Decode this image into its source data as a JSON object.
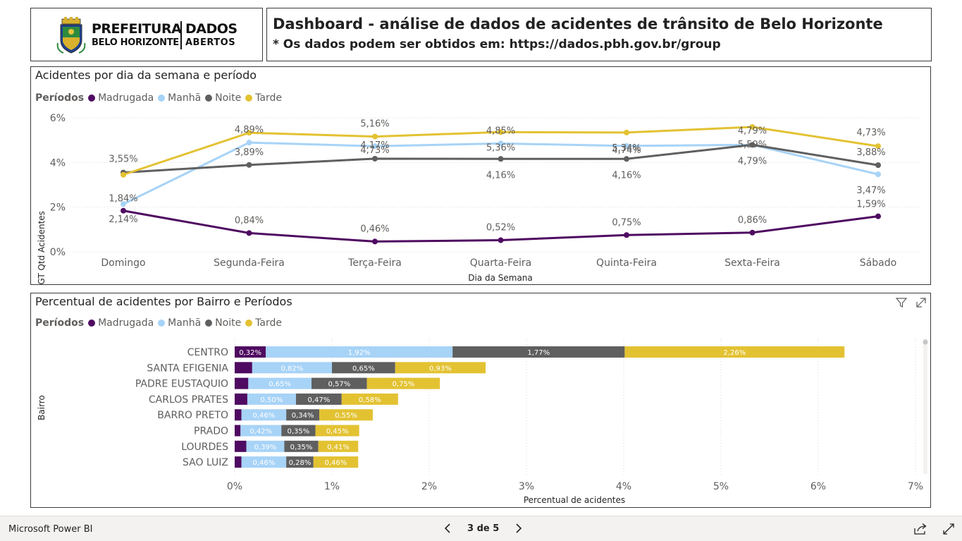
{
  "header": {
    "logo": {
      "line1": "PREFEITURA",
      "line2": "BELO HORIZONTE",
      "line3": "DADOS",
      "line4": "ABERTOS",
      "icon": "coat-of-arms-icon"
    },
    "title": "Dashboard - análise de dados de acidentes de trânsito de Belo Horizonte",
    "subtitle": "* Os dados podem ser obtidos em: https://dados.pbh.gov.br/group"
  },
  "colors": {
    "madrugada": "#4f0a61",
    "manha": "#a7d3f7",
    "noite": "#5f5f5f",
    "tarde": "#e3c232"
  },
  "line_chart": {
    "title": "Acidentes por dia da semana e período",
    "legend_title": "Períodos",
    "legend": [
      "Madrugada",
      "Manhã",
      "Noite",
      "Tarde"
    ],
    "ylabel": "%GT Qtd Acidentes",
    "xlabel": "Dia da Semana",
    "yticks": [
      "6%",
      "4%",
      "2%",
      "0%"
    ]
  },
  "bar_chart": {
    "title": "Percentual de acidentes por Bairro e Períodos",
    "legend_title": "Períodos",
    "legend": [
      "Madrugada",
      "Manhã",
      "Noite",
      "Tarde"
    ],
    "ylabel": "Bairro",
    "xlabel": "Percentual de acidentes",
    "xticks": [
      "0%",
      "1%",
      "2%",
      "3%",
      "4%",
      "5%",
      "6%",
      "7%"
    ]
  },
  "chart_data": [
    {
      "type": "line",
      "title": "Acidentes por dia da semana e período",
      "xlabel": "Dia da Semana",
      "ylabel": "%GT Qtd Acidentes",
      "categories": [
        "Domingo",
        "Segunda-Feira",
        "Terça-Feira",
        "Quarta-Feira",
        "Quinta-Feira",
        "Sexta-Feira",
        "Sábado"
      ],
      "ylim": [
        0,
        6
      ],
      "grid": true,
      "legend_position": "top-left",
      "series": [
        {
          "name": "Madrugada",
          "values": [
            1.84,
            0.84,
            0.46,
            0.52,
            0.75,
            0.86,
            1.59
          ],
          "labels": [
            "1,84%",
            "0,84%",
            "0,46%",
            "0,52%",
            "0,75%",
            "0,86%",
            "1,59%"
          ]
        },
        {
          "name": "Manhã",
          "values": [
            2.14,
            4.89,
            4.73,
            4.85,
            4.74,
            4.79,
            3.47
          ],
          "labels": [
            "2,14%",
            "4,89%",
            "4,73%",
            "4,85%",
            "4,74%",
            "4,79%",
            "3,47%"
          ]
        },
        {
          "name": "Noite",
          "values": [
            3.55,
            3.89,
            4.17,
            4.16,
            4.16,
            4.79,
            3.88
          ],
          "labels": [
            "3,55%",
            "3,89%",
            "4,17%",
            "4,16%",
            "4,16%",
            "4,79%",
            "3,88%"
          ]
        },
        {
          "name": "Tarde",
          "values": [
            3.45,
            5.33,
            5.16,
            5.36,
            5.34,
            5.59,
            4.73
          ],
          "labels": [
            "",
            "",
            "5,16%",
            "5,36%",
            "5,34%",
            "5,59%",
            "4,73%"
          ]
        }
      ]
    },
    {
      "type": "bar",
      "orientation": "horizontal-stacked",
      "title": "Percentual de acidentes por Bairro e Períodos",
      "xlabel": "Percentual de acidentes",
      "ylabel": "Bairro",
      "categories": [
        "CENTRO",
        "SANTA EFIGENIA",
        "PADRE EUSTAQUIO",
        "CARLOS PRATES",
        "BARRO PRETO",
        "PRADO",
        "LOURDES",
        "SAO LUIZ"
      ],
      "xlim": [
        0,
        7
      ],
      "grid": true,
      "legend_position": "top-left",
      "series": [
        {
          "name": "Madrugada",
          "values": [
            0.32,
            0.18,
            0.14,
            0.13,
            0.07,
            0.06,
            0.12,
            0.07
          ],
          "labels": [
            "0,32%",
            "",
            "",
            "",
            "",
            "",
            "",
            ""
          ]
        },
        {
          "name": "Manhã",
          "values": [
            1.92,
            0.82,
            0.65,
            0.5,
            0.46,
            0.42,
            0.39,
            0.46
          ],
          "labels": [
            "1,92%",
            "0,82%",
            "0,65%",
            "0,50%",
            "0,46%",
            "0,42%",
            "0,39%",
            "0,46%"
          ]
        },
        {
          "name": "Noite",
          "values": [
            1.77,
            0.65,
            0.57,
            0.47,
            0.34,
            0.35,
            0.35,
            0.28
          ],
          "labels": [
            "1,77%",
            "0,65%",
            "0,57%",
            "0,47%",
            "0,34%",
            "0,35%",
            "0,35%",
            "0,28%"
          ]
        },
        {
          "name": "Tarde",
          "values": [
            2.26,
            0.93,
            0.75,
            0.58,
            0.55,
            0.45,
            0.41,
            0.46
          ],
          "labels": [
            "2,26%",
            "0,93%",
            "0,75%",
            "0,58%",
            "0,55%",
            "0,45%",
            "0,41%",
            "0,46%"
          ]
        }
      ]
    }
  ],
  "footer": {
    "brand": "Microsoft Power BI",
    "page_indicator": "3 de 5"
  }
}
